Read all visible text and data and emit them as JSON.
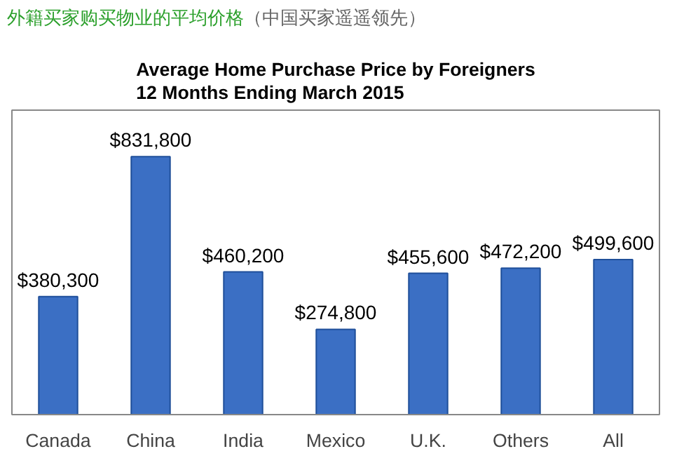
{
  "chart_data": {
    "type": "bar",
    "title": "Average Home Purchase Price by Foreigners\n12 Months Ending March 2015",
    "annotations": [
      "外籍买家购买物业的平均价格",
      "（中国买家遥遥领先）"
    ],
    "categories": [
      "Canada",
      "China",
      "India",
      "Mexico",
      "U.K.",
      "Others",
      "All"
    ],
    "values": [
      380300,
      831800,
      460200,
      274800,
      455600,
      472200,
      499600
    ],
    "value_labels": [
      "$380,300",
      "$831,800",
      "$460,200",
      "$274,800",
      "$455,600",
      "$472,200",
      "$499,600"
    ],
    "color": "#3b6fc4",
    "grid": false
  }
}
